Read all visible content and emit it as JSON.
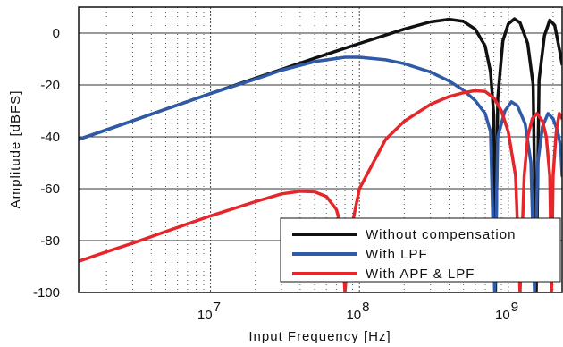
{
  "chart_data": {
    "type": "line",
    "xlabel": "Input Frequency [Hz]",
    "ylabel": "Amplitude [dBFS]",
    "x_scale": "log",
    "xlim": [
      1300000,
      2300000000
    ],
    "ylim": [
      -100,
      10
    ],
    "grid": true,
    "legend_position": "bottom-right",
    "x_ticks": [
      {
        "value": 10000000,
        "base": "10",
        "exp": "7"
      },
      {
        "value": 100000000,
        "base": "10",
        "exp": "8"
      },
      {
        "value": 1000000000,
        "base": "10",
        "exp": "9"
      }
    ],
    "y_ticks": [
      {
        "value": 0,
        "label": "0"
      },
      {
        "value": -20,
        "label": "-20"
      },
      {
        "value": -40,
        "label": "-40"
      },
      {
        "value": -60,
        "label": "-60"
      },
      {
        "value": -80,
        "label": "-80"
      },
      {
        "value": -100,
        "label": "-100"
      }
    ],
    "series": [
      {
        "name": "Without compensation",
        "color": "#111111",
        "points": [
          [
            1300000,
            -41
          ],
          [
            2000000,
            -37.3
          ],
          [
            3000000,
            -33.8
          ],
          [
            5000000,
            -29.3
          ],
          [
            10000000,
            -23.3
          ],
          [
            20000000,
            -17.4
          ],
          [
            50000000,
            -9.7
          ],
          [
            100000000,
            -4.0
          ],
          [
            200000000,
            1.5
          ],
          [
            300000000,
            4.3
          ],
          [
            400000000,
            5.3
          ],
          [
            500000000,
            4.5
          ],
          [
            600000000,
            1.5
          ],
          [
            700000000,
            -5
          ],
          [
            760000000,
            -15
          ],
          [
            800000000,
            -32
          ],
          [
            820000000,
            -100
          ],
          [
            850000000,
            -25
          ],
          [
            920000000,
            -3
          ],
          [
            1000000000,
            3.5
          ],
          [
            1100000000,
            5.5
          ],
          [
            1200000000,
            4
          ],
          [
            1350000000,
            -4
          ],
          [
            1470000000,
            -20
          ],
          [
            1540000000,
            -100
          ],
          [
            1610000000,
            -18
          ],
          [
            1750000000,
            -1
          ],
          [
            1900000000,
            5
          ],
          [
            2050000000,
            3
          ],
          [
            2200000000,
            -6
          ],
          [
            2300000000,
            -12
          ]
        ]
      },
      {
        "name": "With LPF",
        "color": "#2e5aa8",
        "points": [
          [
            1300000,
            -41
          ],
          [
            2000000,
            -37.3
          ],
          [
            3000000,
            -33.8
          ],
          [
            5000000,
            -29.3
          ],
          [
            10000000,
            -23.3
          ],
          [
            20000000,
            -17.8
          ],
          [
            30000000,
            -14.3
          ],
          [
            50000000,
            -11
          ],
          [
            80000000,
            -9.3
          ],
          [
            100000000,
            -9.3
          ],
          [
            150000000,
            -10.3
          ],
          [
            200000000,
            -11.8
          ],
          [
            300000000,
            -15
          ],
          [
            400000000,
            -18.5
          ],
          [
            500000000,
            -22
          ],
          [
            600000000,
            -26
          ],
          [
            700000000,
            -31
          ],
          [
            760000000,
            -38
          ],
          [
            810000000,
            -100
          ],
          [
            850000000,
            -40
          ],
          [
            950000000,
            -30
          ],
          [
            1050000000,
            -26.5
          ],
          [
            1150000000,
            -28
          ],
          [
            1300000000,
            -35
          ],
          [
            1420000000,
            -50
          ],
          [
            1500000000,
            -100
          ],
          [
            1580000000,
            -50
          ],
          [
            1700000000,
            -36
          ],
          [
            1850000000,
            -31
          ],
          [
            2000000000,
            -33
          ],
          [
            2150000000,
            -38
          ],
          [
            2250000000,
            -44
          ],
          [
            2300000000,
            -55
          ]
        ]
      },
      {
        "name": "With APF & LPF",
        "color": "#e5262b",
        "points": [
          [
            1300000,
            -88
          ],
          [
            2000000,
            -84.3
          ],
          [
            3000000,
            -81
          ],
          [
            5000000,
            -76.5
          ],
          [
            10000000,
            -70.5
          ],
          [
            20000000,
            -65
          ],
          [
            30000000,
            -62
          ],
          [
            40000000,
            -61
          ],
          [
            50000000,
            -61.2
          ],
          [
            60000000,
            -63
          ],
          [
            70000000,
            -68
          ],
          [
            76000000,
            -75
          ],
          [
            80000000,
            -100
          ],
          [
            85000000,
            -80
          ],
          [
            100000000,
            -60
          ],
          [
            150000000,
            -41
          ],
          [
            200000000,
            -34
          ],
          [
            300000000,
            -27.5
          ],
          [
            400000000,
            -24.5
          ],
          [
            500000000,
            -23
          ],
          [
            600000000,
            -22.2
          ],
          [
            700000000,
            -22.5
          ],
          [
            800000000,
            -25
          ],
          [
            900000000,
            -30
          ],
          [
            1000000000,
            -38
          ],
          [
            1120000000,
            -55
          ],
          [
            1200000000,
            -100
          ],
          [
            1280000000,
            -55
          ],
          [
            1350000000,
            -40
          ],
          [
            1450000000,
            -33
          ],
          [
            1560000000,
            -31
          ],
          [
            1700000000,
            -34
          ],
          [
            1800000000,
            -40
          ],
          [
            1900000000,
            -55
          ],
          [
            1950000000,
            -100
          ],
          [
            2000000000,
            -55
          ],
          [
            2100000000,
            -38
          ],
          [
            2200000000,
            -31
          ],
          [
            2300000000,
            -33
          ]
        ]
      }
    ]
  }
}
